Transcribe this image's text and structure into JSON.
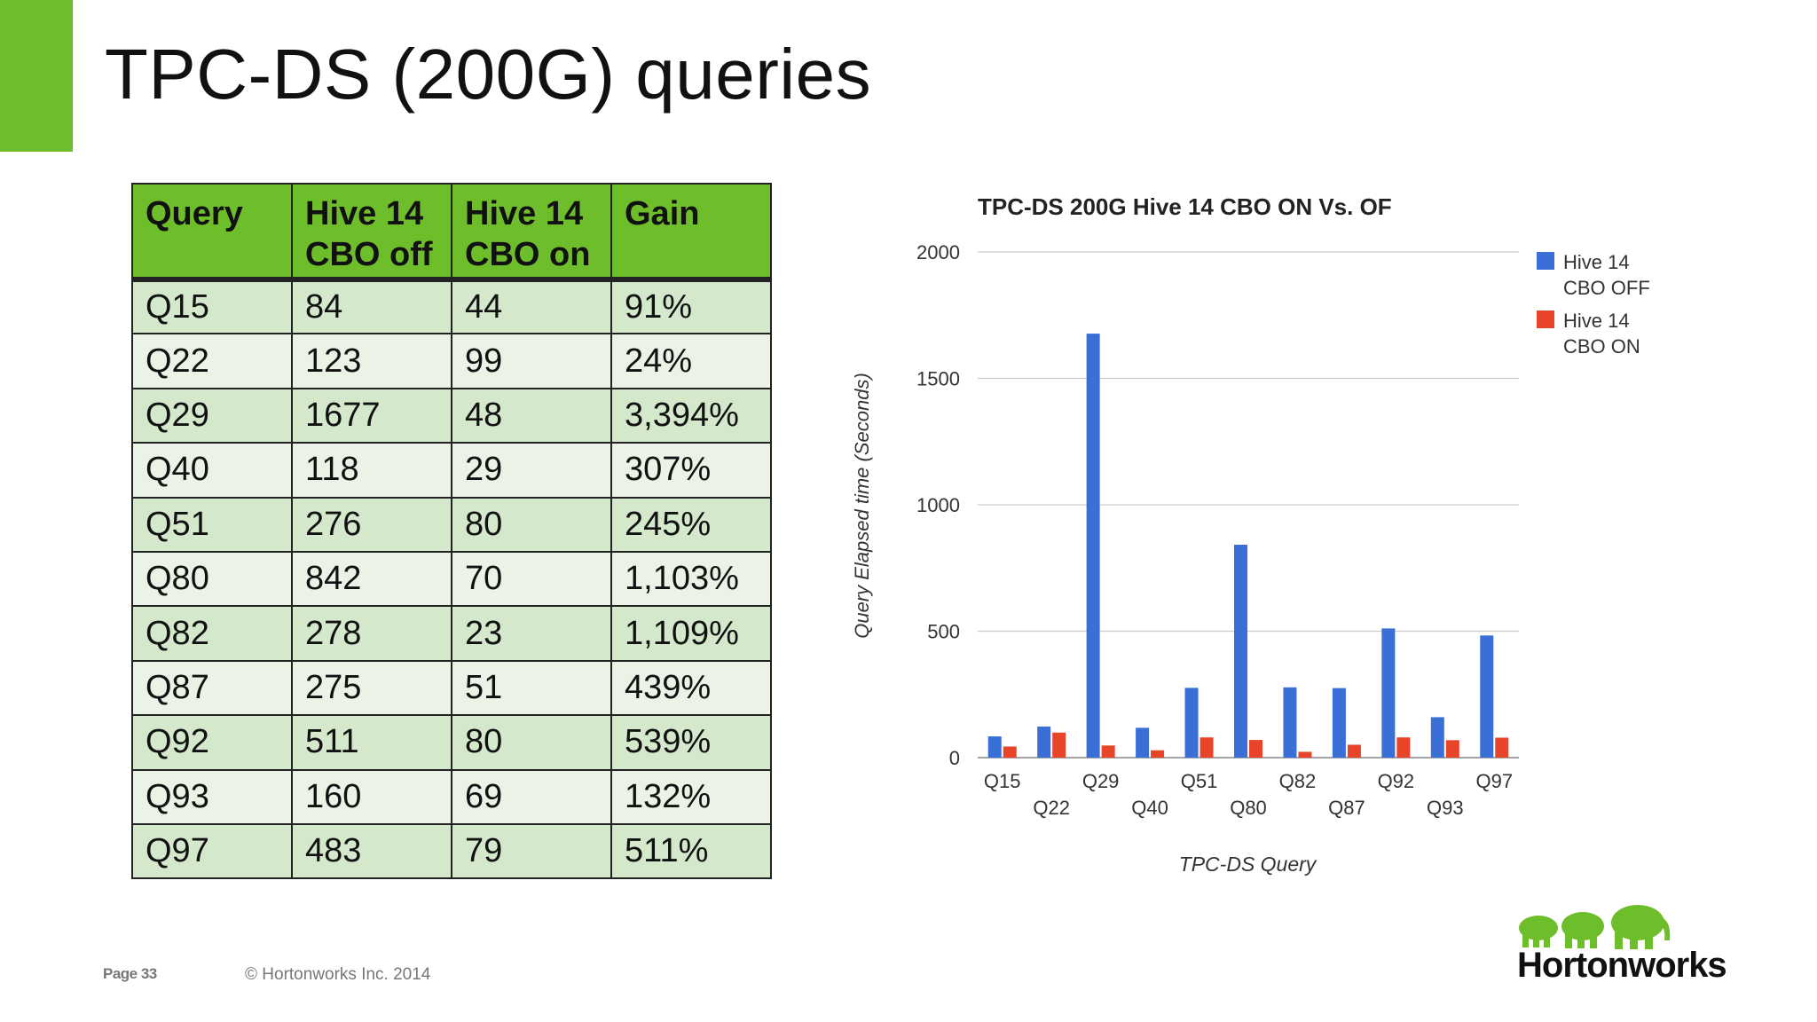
{
  "slide": {
    "title": "TPC-DS (200G) queries",
    "page_label": "Page 33",
    "copyright": "© Hortonworks Inc. 2014",
    "brand": "Hortonworks"
  },
  "colors": {
    "accent_green": "#6ebd2b",
    "series_off": "#3a6fd8",
    "series_on": "#e8442a"
  },
  "table": {
    "headers": [
      "Query",
      "Hive 14\nCBO off",
      "Hive 14\nCBO on",
      "Gain"
    ],
    "rows": [
      [
        "Q15",
        "84",
        "44",
        "91%"
      ],
      [
        "Q22",
        "123",
        "99",
        "24%"
      ],
      [
        "Q29",
        "1677",
        "48",
        "3,394%"
      ],
      [
        "Q40",
        "118",
        "29",
        "307%"
      ],
      [
        "Q51",
        "276",
        "80",
        "245%"
      ],
      [
        "Q80",
        "842",
        "70",
        "1,103%"
      ],
      [
        "Q82",
        "278",
        "23",
        "1,109%"
      ],
      [
        "Q87",
        "275",
        "51",
        "439%"
      ],
      [
        "Q92",
        "511",
        "80",
        "539%"
      ],
      [
        "Q93",
        "160",
        "69",
        "132%"
      ],
      [
        "Q97",
        "483",
        "79",
        "511%"
      ]
    ]
  },
  "chart_data": {
    "type": "bar",
    "title": "TPC-DS 200G Hive 14 CBO ON Vs. OF",
    "xlabel": "TPC-DS Query",
    "ylabel": "Query Elapsed time (Seconds)",
    "categories": [
      "Q15",
      "Q22",
      "Q29",
      "Q40",
      "Q51",
      "Q80",
      "Q82",
      "Q87",
      "Q92",
      "Q93",
      "Q97"
    ],
    "series": [
      {
        "name": "Hive 14 CBO OFF",
        "legend_lines": [
          "Hive 14",
          "CBO OFF"
        ],
        "values": [
          84,
          123,
          1677,
          118,
          276,
          842,
          278,
          275,
          511,
          160,
          483
        ]
      },
      {
        "name": "Hive 14 CBO ON",
        "legend_lines": [
          "Hive 14",
          "CBO ON"
        ],
        "values": [
          44,
          99,
          48,
          29,
          80,
          70,
          23,
          51,
          80,
          69,
          79
        ]
      }
    ],
    "yticks": [
      "0",
      "500",
      "1000",
      "1500",
      "2000"
    ],
    "ylim": [
      0,
      2000
    ],
    "grid": true,
    "legend": "right"
  }
}
